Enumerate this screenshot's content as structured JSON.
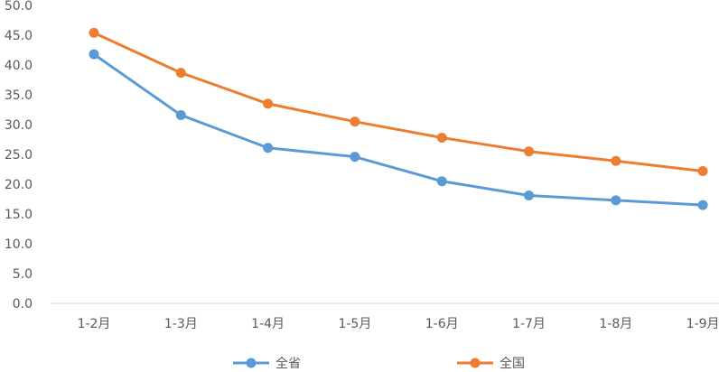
{
  "chart_data": {
    "type": "line",
    "categories": [
      "1-2月",
      "1-3月",
      "1-4月",
      "1-5月",
      "1-6月",
      "1-7月",
      "1-8月",
      "1-9月"
    ],
    "series": [
      {
        "name": "全省",
        "color": "#5B9BD5",
        "values": [
          41.8,
          31.6,
          26.1,
          24.6,
          20.5,
          18.1,
          17.3,
          16.5
        ]
      },
      {
        "name": "全国",
        "color": "#ED7D31",
        "values": [
          45.4,
          38.7,
          33.5,
          30.5,
          27.8,
          25.5,
          23.9,
          22.2
        ]
      }
    ],
    "y_ticks": [
      "0.0",
      "5.0",
      "10.0",
      "15.0",
      "20.0",
      "25.0",
      "30.0",
      "35.0",
      "40.0",
      "45.0",
      "50.0"
    ],
    "ylim": [
      0,
      50
    ],
    "grid": false,
    "legend_position": "bottom"
  }
}
